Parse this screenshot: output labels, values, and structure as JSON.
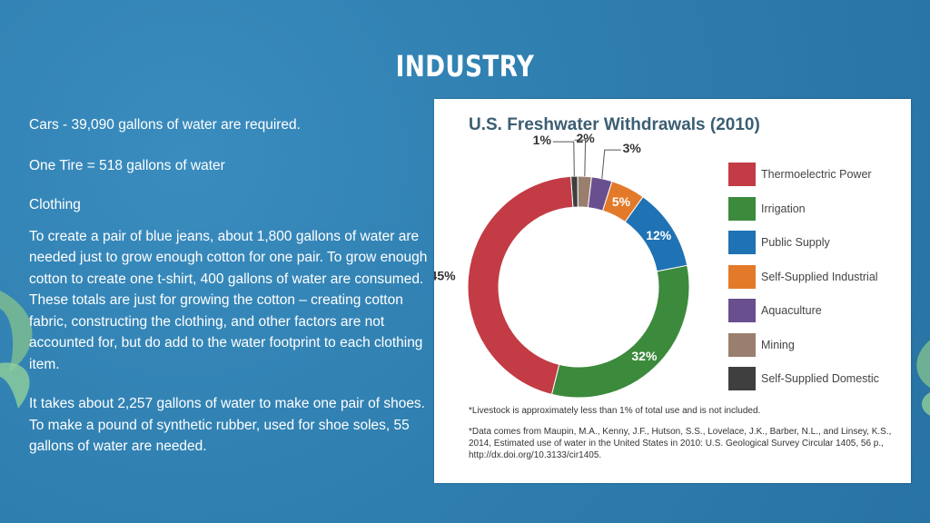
{
  "slide": {
    "title": "INDUSTRY",
    "paragraphs": [
      "Cars - 39,090 gallons of water are required.",
      "One Tire = 518 gallons of water",
      "Clothing",
      "To create a pair of blue jeans, about 1,800 gallons of water are needed just to grow enough cotton for one pair. To grow enough cotton to create one t-shirt, 400 gallons of water are consumed. These totals are just for growing the cotton – creating cotton fabric, constructing the clothing, and other factors are not accounted for, but do add to the water footprint to each clothing item.",
      "It takes about 2,257 gallons of water to make one pair of shoes. To make a pound of synthetic rubber, used for shoe soles, 55 gallons of water are needed."
    ]
  },
  "chart_data": {
    "type": "pie",
    "title": "U.S. Freshwater Withdrawals (2010)",
    "donut": true,
    "slices": [
      {
        "name": "Thermoelectric Power",
        "value": 45,
        "label": "45%",
        "color": "#c33b44"
      },
      {
        "name": "Irrigation",
        "value": 32,
        "label": "32%",
        "color": "#3c8a3c"
      },
      {
        "name": "Public Supply",
        "value": 12,
        "label": "12%",
        "color": "#1f72b4"
      },
      {
        "name": "Self-Supplied Industrial",
        "value": 5,
        "label": "5%",
        "color": "#e27a2a"
      },
      {
        "name": "Aquaculture",
        "value": 3,
        "label": "3%",
        "color": "#6a4f8f"
      },
      {
        "name": "Mining",
        "value": 2,
        "label": "2%",
        "color": "#9a7f6e"
      },
      {
        "name": "Self-Supplied Domestic",
        "value": 1,
        "label": "1%",
        "color": "#3f3f3f"
      }
    ],
    "legend_position": "right",
    "notes": [
      "*Livestock is approximately less than 1% of total use and is not included.",
      "*Data comes from Maupin, M.A., Kenny, J.F., Hutson, S.S., Lovelace, J.K., Barber, N.L., and Linsey, K.S., 2014, Estimated use of water in the United States in 2010: U.S. Geological Survey Circular 1405, 56 p., http://dx.doi.org/10.3133/cir1405."
    ]
  }
}
